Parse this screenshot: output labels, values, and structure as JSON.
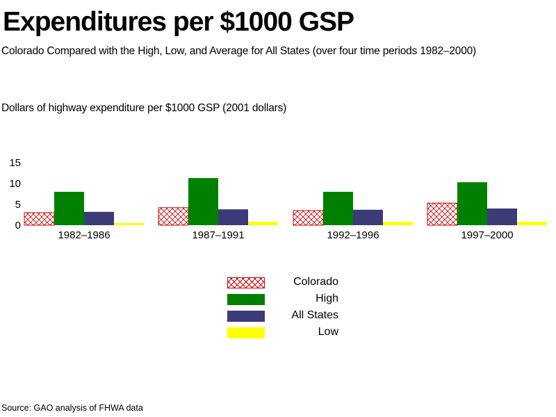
{
  "title": "Expenditures per $1000 GSP",
  "subtitle": "Colorado Compared with the High, Low, and Average for All States (over four time periods 1982–2000)",
  "source": "Source: GAO analysis of FHWA data",
  "colors": {
    "colorado": "#cc0000",
    "high": "#008000",
    "all_states": "#3b3b78",
    "low": "#ffff00"
  },
  "chart_data": {
    "type": "bar",
    "ylabel": "Dollars of highway expenditure per $1000 GSP  (2001 dollars)",
    "xlabel": "",
    "categories": [
      "1982–1986",
      "1987–1991",
      "1992–1996",
      "1997–2000"
    ],
    "yticks": [
      "0",
      "5",
      "10",
      "15"
    ],
    "ylim": [
      0,
      15
    ],
    "grid": false,
    "legend_position": "bottom-center",
    "series": [
      {
        "name": "Colorado",
        "key": "colorado",
        "pattern": "crosshatch",
        "values": [
          3.0,
          4.2,
          3.5,
          5.3
        ]
      },
      {
        "name": "High",
        "key": "high",
        "pattern": "solid",
        "values": [
          8.0,
          11.3,
          8.0,
          10.3
        ]
      },
      {
        "name": "All States",
        "key": "all_states",
        "pattern": "solid",
        "values": [
          3.2,
          3.8,
          3.7,
          4.0
        ]
      },
      {
        "name": "Low",
        "key": "low",
        "pattern": "solid",
        "values": [
          0.5,
          0.8,
          0.8,
          0.8
        ]
      }
    ]
  }
}
